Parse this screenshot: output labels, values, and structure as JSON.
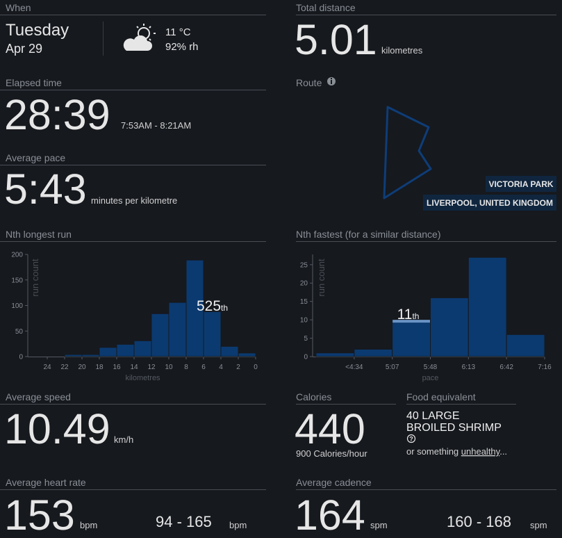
{
  "when": {
    "label": "When",
    "day": "Tuesday",
    "date": "Apr 29",
    "temperature": "11 °C",
    "humidity": "92% rh"
  },
  "total_distance": {
    "label": "Total distance",
    "value": "5.01",
    "unit": "kilometres"
  },
  "elapsed_time": {
    "label": "Elapsed time",
    "value": "28:39",
    "range": "7:53AM - 8:21AM"
  },
  "route": {
    "label": "Route",
    "place": "VICTORIA PARK",
    "city": "LIVERPOOL, UNITED KINGDOM"
  },
  "average_pace": {
    "label": "Average pace",
    "value": "5:43",
    "unit": "minutes per kilometre"
  },
  "chart_data": [
    {
      "type": "histogram",
      "title": "Nth longest run",
      "bins": [
        24,
        22,
        20,
        18,
        16,
        14,
        12,
        10,
        8,
        6,
        4,
        2,
        0
      ],
      "values": [
        0,
        4,
        4,
        18,
        24,
        31,
        84,
        106,
        189,
        88,
        20,
        7
      ],
      "xlabel": "kilometres",
      "ylabel": "run count",
      "xlim": [
        26,
        0
      ],
      "ylim": [
        0,
        200
      ],
      "xticks": [
        24,
        22,
        20,
        18,
        16,
        14,
        12,
        10,
        8,
        6,
        4,
        2,
        0
      ],
      "yticks": [
        0,
        50,
        100,
        150,
        200
      ],
      "color": "#0b3a70",
      "annotation": {
        "text": "525",
        "suffix": "th"
      }
    },
    {
      "type": "histogram",
      "title": "Nth fastest (for a similar distance)",
      "bin_labels": [
        null,
        "<4:34",
        "5:07",
        "5:48",
        "6:13",
        "6:42",
        "7:16"
      ],
      "values": [
        1,
        2,
        10,
        16,
        27,
        6
      ],
      "xlabel": "pace",
      "ylabel": "run count",
      "ylim": [
        0,
        27.8
      ],
      "yticks": [
        0,
        5,
        10,
        15,
        20,
        25
      ],
      "color": "#0b3a70",
      "highlight_color": "#6a93c4",
      "annotation": {
        "text": "11",
        "suffix": "th",
        "bin": 2
      }
    }
  ],
  "average_speed": {
    "label": "Average speed",
    "value": "10.49",
    "unit": "km/h"
  },
  "calories": {
    "label": "Calories",
    "value": "440",
    "rate": "900",
    "rate_unit": "Calories/hour"
  },
  "food_equivalent": {
    "label": "Food equivalent",
    "line1": "40 LARGE",
    "line2": "BROILED SHRIMP",
    "alt_prefix": "or something",
    "alt_link": "unhealthy",
    "alt_suffix": "..."
  },
  "average_heart_rate": {
    "label": "Average heart rate",
    "value": "153",
    "unit": "bpm",
    "range": "94 - 165",
    "range_unit": "bpm"
  },
  "average_cadence": {
    "label": "Average cadence",
    "value": "164",
    "unit": "spm",
    "range": "160 - 168",
    "range_unit": "spm"
  }
}
